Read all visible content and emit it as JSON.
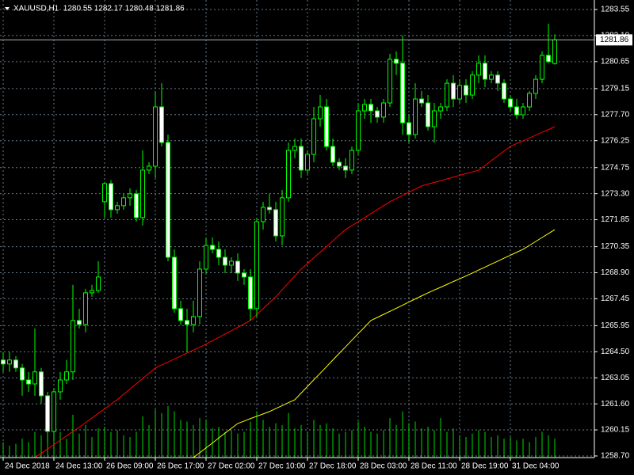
{
  "chart_data": {
    "type": "candlestick",
    "title": "XAUUSD,H1  1280.55 1282.17 1280.48 1281.86",
    "categories": [
      "24 Dec 2018",
      null,
      null,
      null,
      null,
      null,
      null,
      null,
      "24 Dec 13:00",
      null,
      null,
      null,
      null,
      null,
      null,
      null,
      "26 Dec 09:00",
      null,
      null,
      null,
      null,
      null,
      null,
      null,
      "26 Dec 17:00",
      null,
      null,
      null,
      null,
      null,
      null,
      null,
      "27 Dec 02:00",
      null,
      null,
      null,
      null,
      null,
      null,
      null,
      "27 Dec 10:00",
      null,
      null,
      null,
      null,
      null,
      null,
      null,
      "27 Dec 18:00",
      null,
      null,
      null,
      null,
      null,
      null,
      null,
      "28 Dec 03:00",
      null,
      null,
      null,
      null,
      null,
      null,
      null,
      "28 Dec 11:00",
      null,
      null,
      null,
      null,
      null,
      null,
      null,
      "28 Dec 19:00",
      null,
      null,
      null,
      null,
      null,
      null,
      null,
      "31 Dec 04:00",
      null,
      null,
      null,
      null,
      null,
      null,
      null
    ],
    "open": [
      1264.04,
      1263.82,
      1264.04,
      1263.6,
      1262.93,
      1262.71,
      1263.38,
      1262.05,
      1260.07,
      1262.27,
      1262.93,
      1263.38,
      1266.24,
      1266.02,
      1267.78,
      1267.91,
      1272.85,
      1273.86,
      1272.41,
      1272.63,
      1273.07,
      1273.29,
      1271.97,
      1274.61,
      1274.83,
      1278.13,
      1276.15,
      1269.76,
      1266.9,
      1266.24,
      1266.02,
      1266.46,
      1269.1,
      1270.42,
      1270.2,
      1269.76,
      1269.32,
      1269.54,
      1268.88,
      1268.66,
      1266.9,
      1271.74,
      1272.54,
      1272.41,
      1270.95,
      1273.07,
      1275.71,
      1275.93,
      1274.61,
      1275.49,
      1277.47,
      1278.13,
      1275.93,
      1275.05,
      1274.83,
      1274.61,
      1275.71,
      1277.91,
      1278.27,
      1277.91,
      1277.56,
      1278.35,
      1280.78,
      1280.56,
      1277.25,
      1276.59,
      1278.57,
      1278.35,
      1277.03,
      1277.91,
      1278.13,
      1279.45,
      1278.57,
      1279.32,
      1278.79,
      1279.9,
      1280.56,
      1279.67,
      1279.9,
      1279.45,
      1278.57,
      1278.13,
      1277.69,
      1278.13,
      1278.88,
      1279.67,
      1281.0,
      1280.55
    ],
    "high": [
      1264.48,
      1264.48,
      1264.26,
      1263.82,
      1263.38,
      1265.8,
      1263.6,
      1262.27,
      1262.49,
      1263.38,
      1264.04,
      1268.22,
      1266.9,
      1268.0,
      1268.22,
      1269.54,
      1273.95,
      1274.05,
      1272.85,
      1273.29,
      1273.6,
      1273.51,
      1275.71,
      1275.05,
      1279.01,
      1279.45,
      1276.59,
      1270.2,
      1267.34,
      1266.9,
      1267.34,
      1269.54,
      1270.86,
      1270.86,
      1270.64,
      1270.2,
      1269.76,
      1269.98,
      1269.1,
      1269.1,
      1271.97,
      1272.85,
      1273.29,
      1272.85,
      1273.51,
      1276.15,
      1276.37,
      1276.37,
      1275.71,
      1278.13,
      1278.79,
      1278.57,
      1276.37,
      1275.27,
      1275.27,
      1275.93,
      1278.35,
      1278.57,
      1278.57,
      1278.13,
      1278.57,
      1281.08,
      1281.22,
      1282.1,
      1277.69,
      1279.45,
      1279.01,
      1278.79,
      1278.35,
      1278.35,
      1279.67,
      1279.9,
      1279.67,
      1279.67,
      1280.12,
      1281.0,
      1281.0,
      1280.12,
      1280.12,
      1279.67,
      1278.79,
      1278.57,
      1278.35,
      1279.01,
      1279.9,
      1281.22,
      1282.76,
      1282.17
    ],
    "low": [
      1263.38,
      1263.38,
      1263.38,
      1262.05,
      1262.27,
      1262.05,
      1261.61,
      1259.41,
      1259.63,
      1261.83,
      1262.71,
      1262.93,
      1265.8,
      1265.58,
      1267.56,
      1267.78,
      1271.97,
      1271.97,
      1272.19,
      1272.41,
      1272.63,
      1271.74,
      1271.52,
      1274.39,
      1274.17,
      1275.93,
      1269.54,
      1266.68,
      1266.02,
      1264.48,
      1265.58,
      1266.02,
      1268.88,
      1269.98,
      1269.32,
      1268.88,
      1268.88,
      1268.44,
      1268.22,
      1266.24,
      1266.46,
      1271.3,
      1272.19,
      1270.64,
      1270.42,
      1272.85,
      1275.27,
      1274.17,
      1274.39,
      1275.05,
      1277.03,
      1275.71,
      1274.83,
      1274.61,
      1274.17,
      1274.39,
      1275.49,
      1277.47,
      1277.25,
      1277.25,
      1277.25,
      1278.13,
      1279.9,
      1276.59,
      1276.15,
      1276.37,
      1278.13,
      1276.81,
      1276.15,
      1277.47,
      1277.91,
      1278.13,
      1278.35,
      1278.35,
      1278.57,
      1279.45,
      1279.23,
      1279.45,
      1279.01,
      1278.35,
      1277.91,
      1277.47,
      1277.47,
      1277.91,
      1278.57,
      1279.45,
      1280.56,
      1280.48
    ],
    "close": [
      1263.82,
      1264.04,
      1263.6,
      1262.93,
      1262.71,
      1263.38,
      1262.05,
      1260.07,
      1262.27,
      1262.93,
      1263.38,
      1266.24,
      1266.02,
      1267.78,
      1267.91,
      1268.66,
      1273.86,
      1272.41,
      1272.63,
      1273.07,
      1273.29,
      1271.97,
      1274.61,
      1274.83,
      1278.13,
      1276.15,
      1269.76,
      1266.9,
      1266.24,
      1266.02,
      1266.46,
      1269.1,
      1270.42,
      1270.2,
      1269.76,
      1269.32,
      1269.54,
      1268.88,
      1268.66,
      1266.9,
      1271.74,
      1272.54,
      1272.41,
      1270.95,
      1273.07,
      1275.71,
      1275.93,
      1274.61,
      1275.49,
      1277.47,
      1278.13,
      1275.93,
      1275.05,
      1274.83,
      1274.61,
      1275.71,
      1277.91,
      1278.27,
      1277.91,
      1277.56,
      1278.35,
      1280.78,
      1280.56,
      1277.25,
      1276.59,
      1278.57,
      1278.35,
      1277.03,
      1277.91,
      1278.13,
      1279.45,
      1278.57,
      1279.32,
      1278.79,
      1279.9,
      1280.56,
      1279.67,
      1279.9,
      1279.45,
      1278.57,
      1278.13,
      1277.69,
      1278.13,
      1278.88,
      1279.67,
      1281.0,
      1280.65,
      1281.86
    ],
    "candle_color": "#00ff00",
    "up_fill": "#000000",
    "down_fill": "#ffffff",
    "overlays": [
      {
        "color": "#ff0000",
        "values": [
          null,
          null,
          null,
          null,
          null,
          1258.61,
          1258.85,
          1259.09,
          1259.33,
          1259.58,
          1259.82,
          1260.06,
          1260.3,
          1260.56,
          1260.81,
          1261.07,
          1261.32,
          1261.58,
          1261.83,
          1262.13,
          1262.42,
          1262.72,
          1263.01,
          1263.31,
          1263.6,
          1263.77,
          1263.93,
          1264.1,
          1264.26,
          1264.43,
          1264.59,
          1264.76,
          1264.92,
          1265.11,
          1265.3,
          1265.49,
          1265.67,
          1265.86,
          1266.05,
          1266.24,
          1266.57,
          1266.9,
          1267.23,
          1267.56,
          1267.95,
          1268.33,
          1268.72,
          1269.1,
          1269.41,
          1269.73,
          1270.04,
          1270.36,
          1270.67,
          1270.99,
          1271.3,
          1271.52,
          1271.74,
          1271.96,
          1272.19,
          1272.41,
          1272.63,
          1272.85,
          1273.03,
          1273.2,
          1273.38,
          1273.55,
          1273.73,
          1273.83,
          1273.93,
          1274.02,
          1274.12,
          1274.22,
          1274.32,
          1274.42,
          1274.51,
          1274.61,
          1274.87,
          1275.14,
          1275.4,
          1275.67,
          1275.93,
          1276.09,
          1276.24,
          1276.4,
          1276.56,
          1276.72,
          1276.87,
          1277.03
        ]
      },
      {
        "color": "#ffff00",
        "values": [
          null,
          null,
          null,
          null,
          null,
          null,
          null,
          null,
          null,
          null,
          null,
          null,
          null,
          null,
          null,
          null,
          null,
          null,
          null,
          null,
          null,
          null,
          null,
          null,
          null,
          null,
          null,
          null,
          null,
          null,
          1258.61,
          1258.88,
          1259.15,
          1259.42,
          1259.7,
          1259.97,
          1260.24,
          1260.51,
          1260.64,
          1260.78,
          1260.91,
          1261.04,
          1261.17,
          1261.34,
          1261.5,
          1261.67,
          1261.83,
          1262.2,
          1262.57,
          1262.94,
          1263.3,
          1263.67,
          1264.04,
          1264.41,
          1264.77,
          1265.14,
          1265.51,
          1265.87,
          1266.24,
          1266.41,
          1266.58,
          1266.75,
          1266.92,
          1267.09,
          1267.27,
          1267.44,
          1267.61,
          1267.78,
          1267.94,
          1268.09,
          1268.25,
          1268.41,
          1268.56,
          1268.72,
          1268.88,
          1269.05,
          1269.21,
          1269.38,
          1269.54,
          1269.71,
          1269.87,
          1270.04,
          1270.2,
          1270.42,
          1270.64,
          1270.86,
          1271.08,
          1271.3
        ]
      }
    ],
    "volume": {
      "color": "#00ff00",
      "values": [
        900,
        700,
        800,
        1100,
        900,
        1500,
        1300,
        2200,
        1700,
        1500,
        1100,
        2500,
        1400,
        1900,
        1200,
        1700,
        1800,
        1500,
        1600,
        1300,
        1200,
        1500,
        2400,
        1900,
        2800,
        2600,
        3000,
        2700,
        2200,
        2100,
        1900,
        2300,
        2200,
        1700,
        1800,
        1500,
        1600,
        1400,
        1500,
        2100,
        2700,
        2200,
        1800,
        2000,
        1900,
        2600,
        1700,
        1900,
        1500,
        2200,
        1900,
        2000,
        1700,
        1400,
        1500,
        1600,
        2100,
        1800,
        1500,
        1400,
        1600,
        2300,
        1900,
        2700,
        2000,
        2100,
        1700,
        1800,
        1600,
        2300,
        1500,
        1700,
        1300,
        1200,
        1400,
        1600,
        1500,
        1200,
        1300,
        1100,
        1200,
        1000,
        1100,
        900,
        1200,
        1500,
        1300,
        1100
      ]
    },
    "current_price": 1281.86,
    "ylim": [
      1258.61,
      1284.08
    ],
    "yticks": [
      {
        "value": 1283.55,
        "label": "1283.55"
      },
      {
        "value": 1282.1,
        "label": "1282.10"
      },
      {
        "value": 1280.65,
        "label": "1280.65"
      },
      {
        "value": 1279.15,
        "label": "1279.15"
      },
      {
        "value": 1277.7,
        "label": "1277.70"
      },
      {
        "value": 1276.25,
        "label": "1276.25"
      },
      {
        "value": 1274.75,
        "label": "1274.75"
      },
      {
        "value": 1273.3,
        "label": "1273.30"
      },
      {
        "value": 1271.85,
        "label": "1271.85"
      },
      {
        "value": 1270.35,
        "label": "1270.35"
      },
      {
        "value": 1268.9,
        "label": "1268.90"
      },
      {
        "value": 1267.45,
        "label": "1267.45"
      },
      {
        "value": 1265.95,
        "label": "1265.95"
      },
      {
        "value": 1264.5,
        "label": "1264.50"
      },
      {
        "value": 1263.05,
        "label": "1263.05"
      },
      {
        "value": 1261.6,
        "label": "1261.60"
      },
      {
        "value": 1260.15,
        "label": "1260.15"
      },
      {
        "value": 1258.7,
        "label": "1258.70"
      }
    ],
    "grid": true
  }
}
